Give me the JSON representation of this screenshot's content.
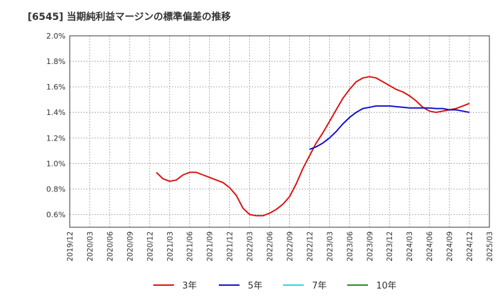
{
  "title": "[6545]  当期純利益マージンの標準偏差の推移",
  "chart_data": {
    "type": "line",
    "title": "[6545]  当期純利益マージンの標準偏差の推移",
    "xlabel": "",
    "ylabel": "",
    "ylim": [
      0.5,
      2.0
    ],
    "y_ticks": [
      "0.6%",
      "0.8%",
      "1.0%",
      "1.2%",
      "1.4%",
      "1.6%",
      "1.8%",
      "2.0%"
    ],
    "x_ticks": [
      "2019/12",
      "2020/03",
      "2020/06",
      "2020/09",
      "2020/12",
      "2021/03",
      "2021/06",
      "2021/09",
      "2021/12",
      "2022/03",
      "2022/06",
      "2022/09",
      "2022/12",
      "2023/03",
      "2023/06",
      "2023/09",
      "2023/12",
      "2024/03",
      "2024/06",
      "2024/09",
      "2024/12",
      "2025/03"
    ],
    "grid": true,
    "legend_position": "bottom",
    "series": [
      {
        "name": "3年",
        "color": "#dd1111",
        "x": [
          "2021/01",
          "2021/02",
          "2021/03",
          "2021/04",
          "2021/05",
          "2021/06",
          "2021/07",
          "2021/08",
          "2021/09",
          "2021/10",
          "2021/11",
          "2021/12",
          "2022/01",
          "2022/02",
          "2022/03",
          "2022/04",
          "2022/05",
          "2022/06",
          "2022/07",
          "2022/08",
          "2022/09",
          "2022/10",
          "2022/11",
          "2022/12",
          "2023/01",
          "2023/02",
          "2023/03",
          "2023/04",
          "2023/05",
          "2023/06",
          "2023/07",
          "2023/08",
          "2023/09",
          "2023/10",
          "2023/11",
          "2023/12",
          "2024/01",
          "2024/02",
          "2024/03",
          "2024/04",
          "2024/05",
          "2024/06",
          "2024/07",
          "2024/08",
          "2024/09",
          "2024/10",
          "2024/11",
          "2024/12"
        ],
        "values": [
          0.93,
          0.88,
          0.86,
          0.87,
          0.91,
          0.93,
          0.93,
          0.91,
          0.89,
          0.87,
          0.85,
          0.81,
          0.75,
          0.65,
          0.6,
          0.59,
          0.59,
          0.61,
          0.64,
          0.68,
          0.74,
          0.84,
          0.96,
          1.06,
          1.16,
          1.24,
          1.33,
          1.42,
          1.51,
          1.58,
          1.64,
          1.67,
          1.68,
          1.67,
          1.64,
          1.61,
          1.58,
          1.56,
          1.53,
          1.49,
          1.44,
          1.41,
          1.4,
          1.41,
          1.42,
          1.43,
          1.45,
          1.47
        ]
      },
      {
        "name": "5年",
        "color": "#1111cc",
        "x": [
          "2022/12",
          "2023/01",
          "2023/02",
          "2023/03",
          "2023/04",
          "2023/05",
          "2023/06",
          "2023/07",
          "2023/08",
          "2023/09",
          "2023/10",
          "2023/11",
          "2023/12",
          "2024/01",
          "2024/02",
          "2024/03",
          "2024/04",
          "2024/05",
          "2024/06",
          "2024/07",
          "2024/08",
          "2024/09",
          "2024/10",
          "2024/11",
          "2024/12"
        ],
        "values": [
          1.11,
          1.13,
          1.16,
          1.2,
          1.25,
          1.31,
          1.36,
          1.4,
          1.43,
          1.44,
          1.45,
          1.45,
          1.45,
          1.445,
          1.44,
          1.435,
          1.435,
          1.435,
          1.435,
          1.43,
          1.43,
          1.42,
          1.42,
          1.41,
          1.4
        ]
      },
      {
        "name": "7年",
        "color": "#22dddd",
        "x": [],
        "values": []
      },
      {
        "name": "10年",
        "color": "#228822",
        "x": [],
        "values": []
      }
    ]
  }
}
